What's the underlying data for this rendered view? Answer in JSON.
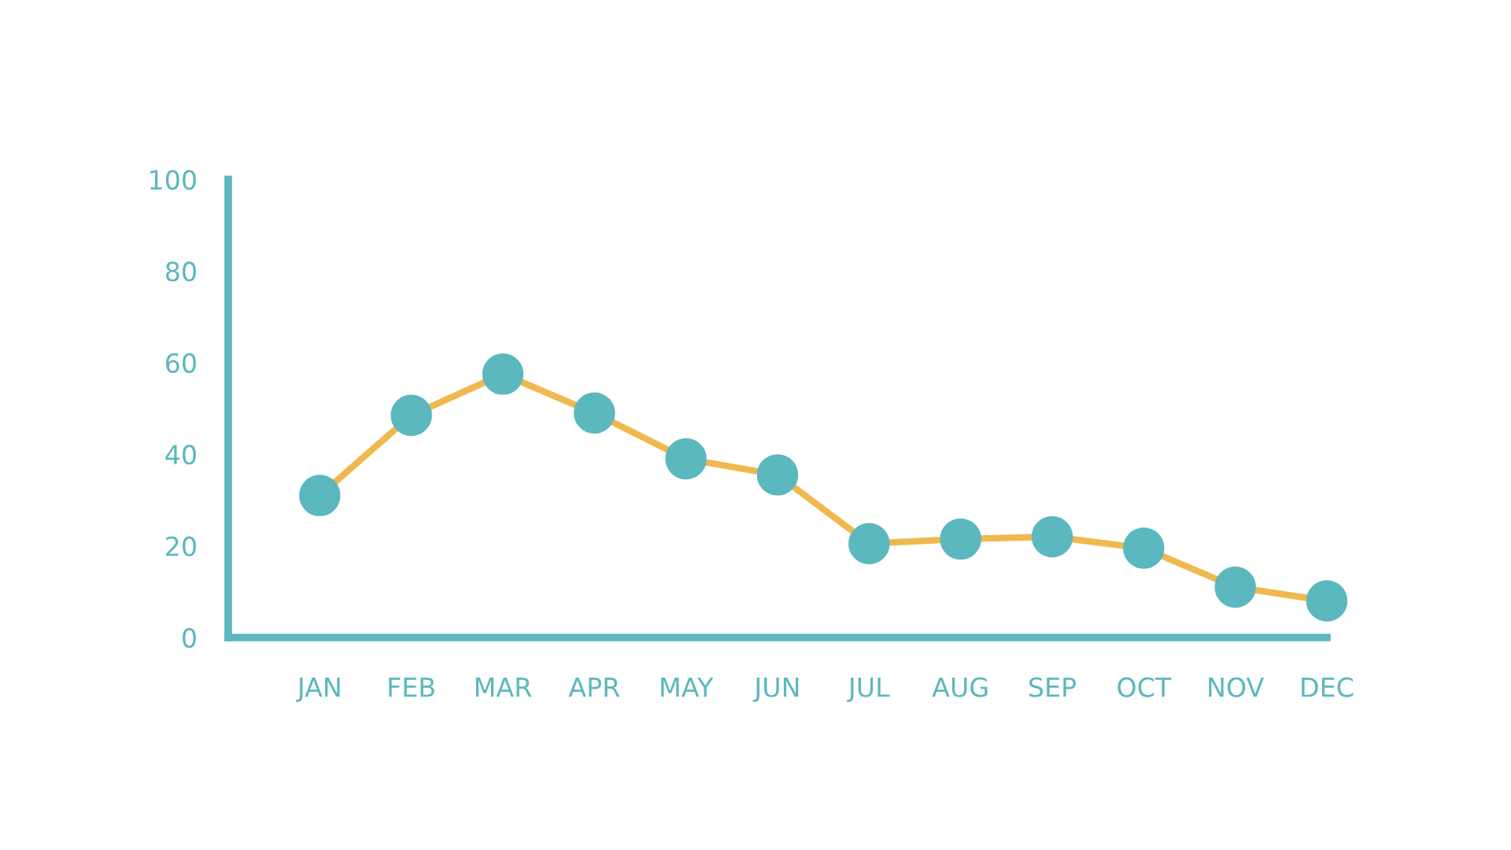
{
  "chart_data": {
    "type": "line",
    "categories": [
      "JAN",
      "FEB",
      "MAR",
      "APR",
      "MAY",
      "JUN",
      "JUL",
      "AUG",
      "SEP",
      "OCT",
      "NOV",
      "DEC"
    ],
    "series": [
      {
        "color": "#efb94f",
        "colors": [
          "#5bb8be",
          "#5bb8be",
          "#5bb8be",
          "#5bb8be",
          "#5bb8be",
          "#5bb8be",
          "#5bb8be",
          "#5bb8be",
          "#5bb8be",
          "#5bb8be",
          "#5bb8be",
          "#5bb8be"
        ],
        "values": [
          31,
          48.5,
          57.5,
          49,
          39,
          35.5,
          20.5,
          21.5,
          22,
          19.5,
          11,
          8
        ]
      }
    ],
    "ylim": [
      0,
      100
    ],
    "yticks": [
      0,
      20,
      40,
      60,
      80,
      100
    ],
    "grid": false,
    "legend": false,
    "marker": "circle",
    "line_style": "solid"
  }
}
